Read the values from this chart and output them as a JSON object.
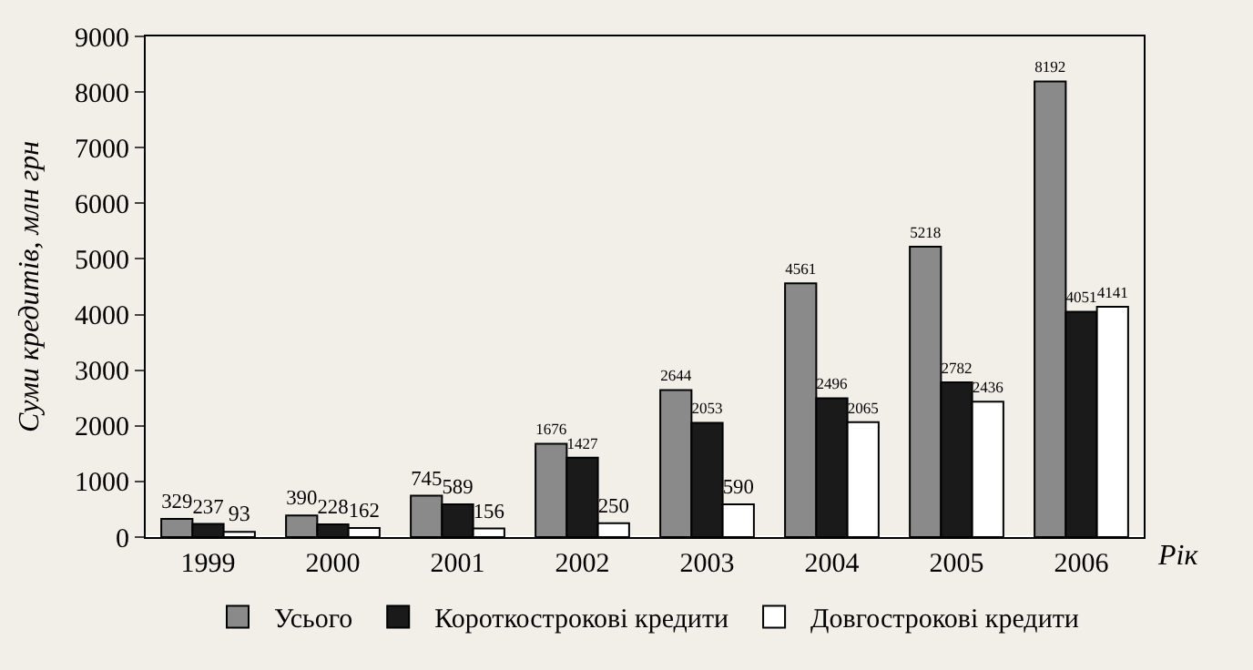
{
  "chart_data": {
    "type": "bar",
    "categories": [
      "1999",
      "2000",
      "2001",
      "2002",
      "2003",
      "2004",
      "2005",
      "2006"
    ],
    "series": [
      {
        "name": "Усього",
        "color": "#8a8a8a",
        "values": [
          329,
          390,
          745,
          1676,
          2644,
          4561,
          5218,
          8192
        ]
      },
      {
        "name": "Короткострокові кредити",
        "color": "#1a1a1a",
        "values": [
          237,
          228,
          589,
          1427,
          2053,
          2496,
          2782,
          4051
        ]
      },
      {
        "name": "Довгострокові кредити",
        "color": "#ffffff",
        "values": [
          93,
          162,
          156,
          250,
          590,
          2065,
          2436,
          4141
        ]
      }
    ],
    "xlabel": "Рік",
    "ylabel": "Суми кредитів, млн грн",
    "ylim": [
      0,
      9000
    ],
    "yticks": [
      0,
      1000,
      2000,
      3000,
      4000,
      5000,
      6000,
      7000,
      8000,
      9000
    ],
    "data_labels": true,
    "grid": false,
    "legend": "bottom"
  }
}
